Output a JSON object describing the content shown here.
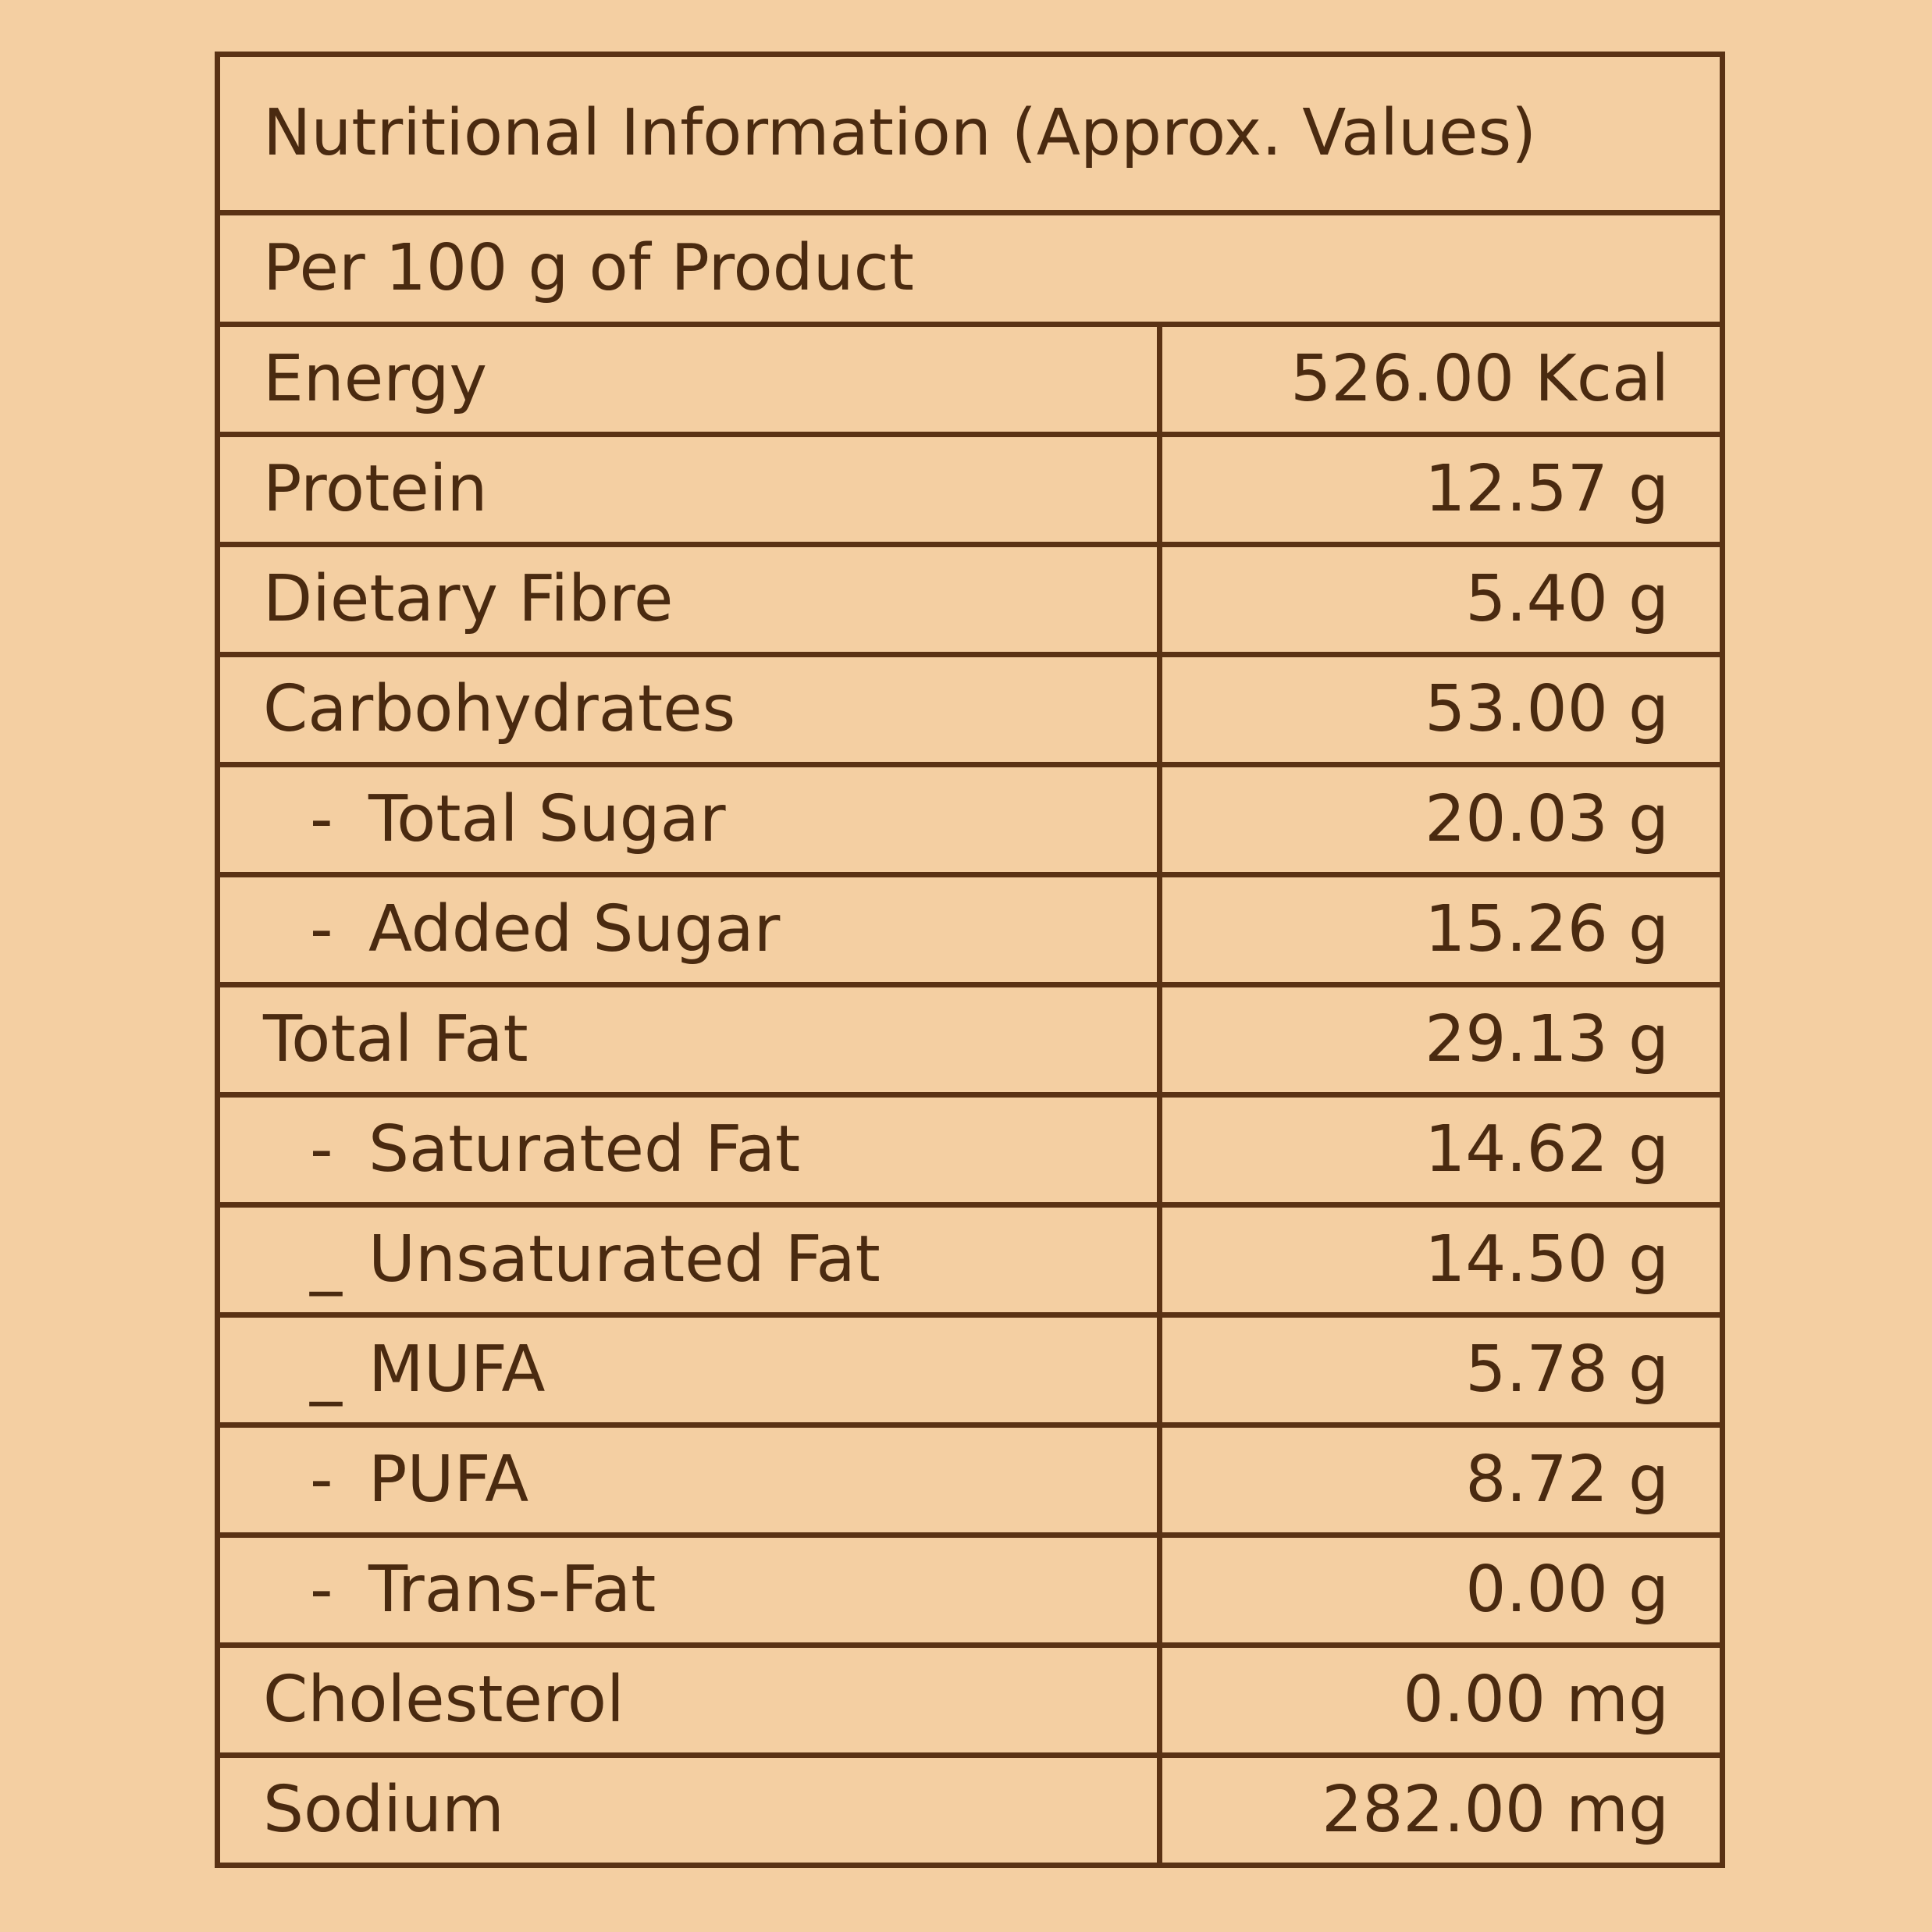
{
  "table": {
    "title": "Nutritional Information (Approx. Values)",
    "subtitle": "Per 100 g of Product",
    "rows": [
      {
        "marker": "",
        "label": "Energy",
        "value": "526.00 Kcal"
      },
      {
        "marker": "",
        "label": "Protein",
        "value": "12.57 g"
      },
      {
        "marker": "",
        "label": "Dietary Fibre",
        "value": "5.40 g"
      },
      {
        "marker": "",
        "label": "Carbohydrates",
        "value": "53.00 g"
      },
      {
        "marker": "-",
        "label": "Total Sugar",
        "value": "20.03 g"
      },
      {
        "marker": "-",
        "label": "Added Sugar",
        "value": "15.26 g"
      },
      {
        "marker": "",
        "label": "Total Fat",
        "value": "29.13 g"
      },
      {
        "marker": "-",
        "label": "Saturated Fat",
        "value": "14.62 g"
      },
      {
        "marker": "_",
        "label": "Unsaturated Fat",
        "value": "14.50 g"
      },
      {
        "marker": "_",
        "label": "MUFA",
        "value": "5.78 g"
      },
      {
        "marker": "-",
        "label": "PUFA",
        "value": "8.72 g"
      },
      {
        "marker": "-",
        "label": "Trans-Fat",
        "value": "0.00 g"
      },
      {
        "marker": "",
        "label": "Cholesterol",
        "value": "0.00 mg"
      },
      {
        "marker": "",
        "label": "Sodium",
        "value": "282.00 mg"
      }
    ]
  }
}
